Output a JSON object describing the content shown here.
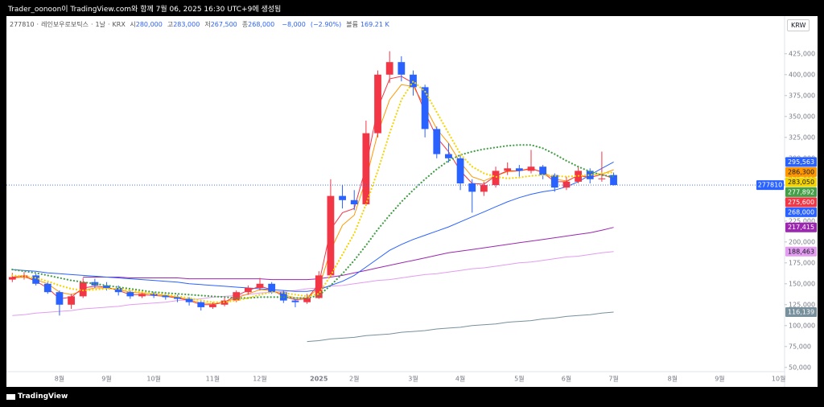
{
  "chart_data": {
    "type": "candlestick",
    "title": "Trader_oonoon이 TradingView.com와 함께 7월 06, 2025 16:30 UTC+9에 생성됨",
    "brand": "TradingView",
    "currency": "KRW",
    "legend": {
      "symbol": "277810",
      "separator": "·",
      "name": "레인보우로보틱스",
      "interval": "1날",
      "exchange": "KRX",
      "fields": [
        {
          "name": "시",
          "value": 280000,
          "label": "280,000"
        },
        {
          "name": "고",
          "value": 283000,
          "label": "283,000"
        },
        {
          "name": "저",
          "value": 267500,
          "label": "267,500"
        },
        {
          "name": "종",
          "value": 268000,
          "label": "268,000"
        }
      ],
      "change": {
        "value": -8000,
        "label": "−8,000"
      },
      "change_pct": {
        "value": -2.9,
        "label": "(−2.90%)"
      },
      "volume": {
        "name": "볼륨",
        "value": 169210,
        "label": "169.21 K"
      }
    },
    "categories": [
      null,
      null,
      null,
      null,
      "8월",
      null,
      null,
      null,
      "9월",
      null,
      null,
      null,
      "10월",
      null,
      null,
      null,
      null,
      "11월",
      null,
      null,
      null,
      "12월",
      null,
      null,
      null,
      null,
      "2025",
      null,
      null,
      "2월",
      null,
      null,
      null,
      null,
      "3월",
      null,
      null,
      null,
      "4월",
      null,
      null,
      null,
      null,
      "5월",
      null,
      null,
      null,
      "6월",
      null,
      null,
      null,
      "7월",
      null,
      null,
      null,
      null,
      "8월",
      null,
      null,
      null,
      "9월",
      null,
      null,
      null,
      null,
      "10월"
    ],
    "up_color": "#f23645",
    "down_color": "#2962ff",
    "candles": {
      "open": [
        155000,
        158000,
        160000,
        150000,
        140000,
        125000,
        135000,
        152000,
        148000,
        145000,
        140000,
        135000,
        138000,
        136000,
        134000,
        132000,
        128000,
        122000,
        125000,
        130000,
        140000,
        145000,
        150000,
        140000,
        130000,
        128000,
        133000,
        160000,
        255000,
        250000,
        245000,
        330000,
        400000,
        415000,
        400000,
        385000,
        335000,
        305000,
        300000,
        270000,
        260000,
        268000,
        285000,
        288000,
        285000,
        290000,
        280000,
        265000,
        272000,
        285000,
        275000,
        280000,
        null,
        null,
        null,
        null,
        null,
        null,
        null,
        null,
        null,
        null,
        null,
        null,
        null,
        null
      ],
      "high": [
        163000,
        164000,
        162000,
        152000,
        142000,
        138000,
        157000,
        156000,
        152000,
        148000,
        142000,
        141000,
        140000,
        139000,
        137000,
        134000,
        130000,
        128000,
        133000,
        142000,
        148000,
        157000,
        152000,
        142000,
        132000,
        138000,
        165000,
        275000,
        268000,
        262000,
        345000,
        405000,
        428000,
        422000,
        405000,
        388000,
        338000,
        318000,
        305000,
        275000,
        272000,
        290000,
        295000,
        292000,
        310000,
        292000,
        282000,
        278000,
        290000,
        288000,
        308000,
        283000,
        null,
        null,
        null,
        null,
        null,
        null,
        null,
        null,
        null,
        null,
        null,
        null,
        null,
        null
      ],
      "low": [
        152000,
        155000,
        148000,
        138000,
        112000,
        120000,
        133000,
        145000,
        142000,
        136000,
        132000,
        133000,
        133000,
        131000,
        128000,
        124000,
        118000,
        120000,
        123000,
        128000,
        137000,
        142000,
        138000,
        127000,
        122000,
        126000,
        132000,
        158000,
        240000,
        238000,
        243000,
        325000,
        390000,
        392000,
        375000,
        325000,
        300000,
        295000,
        262000,
        235000,
        255000,
        265000,
        280000,
        278000,
        282000,
        275000,
        260000,
        262000,
        270000,
        270000,
        272000,
        267500,
        null,
        null,
        null,
        null,
        null,
        null,
        null,
        null,
        null,
        null,
        null,
        null,
        null,
        null
      ],
      "close": [
        158000,
        160000,
        150000,
        140000,
        125000,
        135000,
        152000,
        148000,
        145000,
        140000,
        135000,
        138000,
        136000,
        134000,
        132000,
        128000,
        122000,
        125000,
        130000,
        140000,
        145000,
        150000,
        140000,
        130000,
        128000,
        133000,
        160000,
        255000,
        250000,
        245000,
        330000,
        400000,
        415000,
        400000,
        385000,
        335000,
        305000,
        300000,
        270000,
        260000,
        268000,
        285000,
        288000,
        285000,
        290000,
        280000,
        265000,
        272000,
        285000,
        275000,
        276000,
        268000,
        null,
        null,
        null,
        null,
        null,
        null,
        null,
        null,
        null,
        null,
        null,
        null,
        null,
        null
      ]
    },
    "last_price": {
      "value": 268000,
      "label": "268,000"
    },
    "series": [
      {
        "color": "#78909c",
        "style": "solid",
        "last_label": {
          "value": 116139,
          "label": "116,139"
        },
        "values": [
          null,
          null,
          null,
          null,
          null,
          null,
          null,
          null,
          null,
          null,
          null,
          null,
          null,
          null,
          null,
          null,
          null,
          null,
          null,
          null,
          null,
          null,
          null,
          null,
          null,
          81000,
          82000,
          84000,
          85000,
          86000,
          88000,
          89000,
          90000,
          92000,
          93000,
          94000,
          96000,
          97000,
          98000,
          100000,
          101000,
          102000,
          104000,
          105000,
          106000,
          108000,
          109000,
          111000,
          112000,
          113000,
          115000,
          116139,
          null,
          null,
          null,
          null,
          null,
          null,
          null,
          null,
          null,
          null,
          null,
          null,
          null,
          null
        ]
      },
      {
        "color": "#e39cf0",
        "style": "solid",
        "last_label": {
          "value": 188463,
          "label": "188,463"
        },
        "values": [
          112000,
          113000,
          115000,
          116000,
          117000,
          118000,
          120000,
          121000,
          122000,
          123000,
          125000,
          126000,
          127000,
          128000,
          130000,
          131000,
          132000,
          134000,
          135000,
          136000,
          137000,
          139000,
          140000,
          141000,
          142000,
          144000,
          145000,
          147000,
          148000,
          150000,
          152000,
          154000,
          155000,
          157000,
          159000,
          161000,
          162000,
          164000,
          166000,
          168000,
          169000,
          171000,
          173000,
          175000,
          176000,
          178000,
          180000,
          182000,
          183000,
          185000,
          187000,
          188463,
          null,
          null,
          null,
          null,
          null,
          null,
          null,
          null,
          null,
          null,
          null,
          null,
          null,
          null
        ]
      },
      {
        "color": "#9c27b0",
        "style": "solid",
        "last_label": {
          "value": 217415,
          "label": "217,415"
        },
        "values": [
          null,
          null,
          null,
          null,
          null,
          null,
          158000,
          158000,
          158000,
          158000,
          157000,
          157000,
          157000,
          157000,
          157000,
          156000,
          156000,
          156000,
          156000,
          156000,
          156000,
          156000,
          155000,
          155000,
          155000,
          155000,
          156000,
          158000,
          160000,
          163000,
          166000,
          169000,
          172000,
          175000,
          178000,
          181000,
          184000,
          187000,
          189000,
          191000,
          193000,
          195000,
          197000,
          199000,
          201000,
          203000,
          205000,
          207000,
          209000,
          211000,
          214000,
          217415,
          null,
          null,
          null,
          null,
          null,
          null,
          null,
          null,
          null,
          null,
          null,
          null,
          null,
          null
        ]
      },
      {
        "color": "#2962ff",
        "style": "solid",
        "last_label": {
          "value": 295563,
          "label": "295,563"
        },
        "values": [
          167000,
          166000,
          165000,
          163000,
          162000,
          161000,
          160000,
          159000,
          158000,
          157000,
          156000,
          155000,
          154000,
          153000,
          152000,
          150000,
          149000,
          148000,
          147000,
          146000,
          145000,
          144000,
          143000,
          142000,
          141000,
          141000,
          143000,
          148000,
          153000,
          160000,
          170000,
          180000,
          190000,
          197000,
          203000,
          208000,
          213000,
          218000,
          224000,
          230000,
          236000,
          242000,
          248000,
          253000,
          257000,
          260000,
          262000,
          266000,
          272000,
          280000,
          288000,
          295563,
          null,
          null,
          null,
          null,
          null,
          null,
          null,
          null,
          null,
          null,
          null,
          null,
          null,
          null
        ]
      },
      {
        "color": "#43a047",
        "style": "dotted",
        "last_label": {
          "value": 277892,
          "label": "277,892"
        },
        "values": [
          167000,
          165000,
          163000,
          160000,
          157000,
          154000,
          152000,
          150000,
          148000,
          146000,
          144000,
          142000,
          140000,
          139000,
          138000,
          137000,
          136000,
          135000,
          134000,
          133000,
          133000,
          134000,
          134000,
          134000,
          133000,
          133000,
          136000,
          148000,
          162000,
          178000,
          196000,
          215000,
          232000,
          248000,
          262000,
          275000,
          287000,
          297000,
          304000,
          308000,
          311000,
          313000,
          315000,
          316000,
          316000,
          312000,
          305000,
          297000,
          290000,
          284000,
          280000,
          277892,
          null,
          null,
          null,
          null,
          null,
          null,
          null,
          null,
          null,
          null,
          null,
          null,
          null,
          null
        ]
      },
      {
        "color": "#f5d400",
        "style": "dotted",
        "last_label": {
          "value": 283050,
          "label": "283,050"
        },
        "values": [
          160000,
          159000,
          157000,
          153000,
          148000,
          144000,
          142000,
          143000,
          144000,
          144000,
          142000,
          140000,
          138000,
          137000,
          135000,
          133000,
          130000,
          128000,
          128000,
          130000,
          133000,
          137000,
          140000,
          139000,
          137000,
          135000,
          138000,
          160000,
          185000,
          210000,
          245000,
          285000,
          330000,
          370000,
          392000,
          380000,
          355000,
          330000,
          305000,
          290000,
          282000,
          278000,
          276000,
          277000,
          279000,
          280000,
          279000,
          278000,
          279000,
          280000,
          282000,
          283050,
          null,
          null,
          null,
          null,
          null,
          null,
          null,
          null,
          null,
          null,
          null,
          null,
          null,
          null
        ]
      },
      {
        "color": "#ff9800",
        "style": "solid",
        "last_label": {
          "value": 286300,
          "label": "286,300"
        },
        "values": [
          157000,
          158000,
          155000,
          150000,
          140000,
          137000,
          142000,
          145000,
          145000,
          143000,
          140000,
          139000,
          138000,
          136000,
          134000,
          131000,
          127000,
          126000,
          128000,
          133000,
          138000,
          143000,
          142000,
          137000,
          133000,
          133000,
          145000,
          190000,
          220000,
          232000,
          275000,
          330000,
          370000,
          388000,
          386000,
          362000,
          335000,
          318000,
          295000,
          278000,
          273000,
          279000,
          284000,
          285000,
          287000,
          284000,
          275000,
          273000,
          279000,
          277000,
          281000,
          286300,
          null,
          null,
          null,
          null,
          null,
          null,
          null,
          null,
          null,
          null,
          null,
          null,
          null,
          null
        ]
      },
      {
        "color": "#f23645",
        "style": "solid",
        "last_label": {
          "value": 275600,
          "label": "275,600"
        },
        "values": [
          158000,
          159000,
          153000,
          145000,
          132000,
          134000,
          145000,
          147000,
          146000,
          142000,
          137000,
          137000,
          136000,
          135000,
          133000,
          130000,
          125000,
          125000,
          128000,
          136000,
          142000,
          147000,
          143000,
          135000,
          131000,
          132000,
          150000,
          215000,
          235000,
          240000,
          290000,
          360000,
          395000,
          398000,
          390000,
          355000,
          325000,
          308000,
          285000,
          270000,
          269000,
          279000,
          285000,
          285000,
          288000,
          283000,
          272000,
          272000,
          280000,
          277000,
          281000,
          275600,
          null,
          null,
          null,
          null,
          null,
          null,
          null,
          null,
          null,
          null,
          null,
          null,
          null,
          null
        ]
      }
    ],
    "ylim": [
      45000,
      470000
    ],
    "yticks": [
      {
        "value": 50000,
        "label": "50,000"
      },
      {
        "value": 75000,
        "label": "75,000"
      },
      {
        "value": 100000,
        "label": "100,000"
      },
      {
        "value": 125000,
        "label": "125,000"
      },
      {
        "value": 150000,
        "label": "150,000"
      },
      {
        "value": 175000,
        "label": "175,000"
      },
      {
        "value": 200000,
        "label": "200,000"
      },
      {
        "value": 225000,
        "label": "225,000"
      },
      {
        "value": 250000,
        "label": "250,000"
      },
      {
        "value": 275000,
        "label": "275,000"
      },
      {
        "value": 300000,
        "label": "300,000"
      },
      {
        "value": 325000,
        "label": "325,000"
      },
      {
        "value": 350000,
        "label": "350,000"
      },
      {
        "value": 375000,
        "label": "375,000"
      },
      {
        "value": 400000,
        "label": "400,000"
      },
      {
        "value": 425000,
        "label": "425,000"
      }
    ],
    "grid": false
  }
}
